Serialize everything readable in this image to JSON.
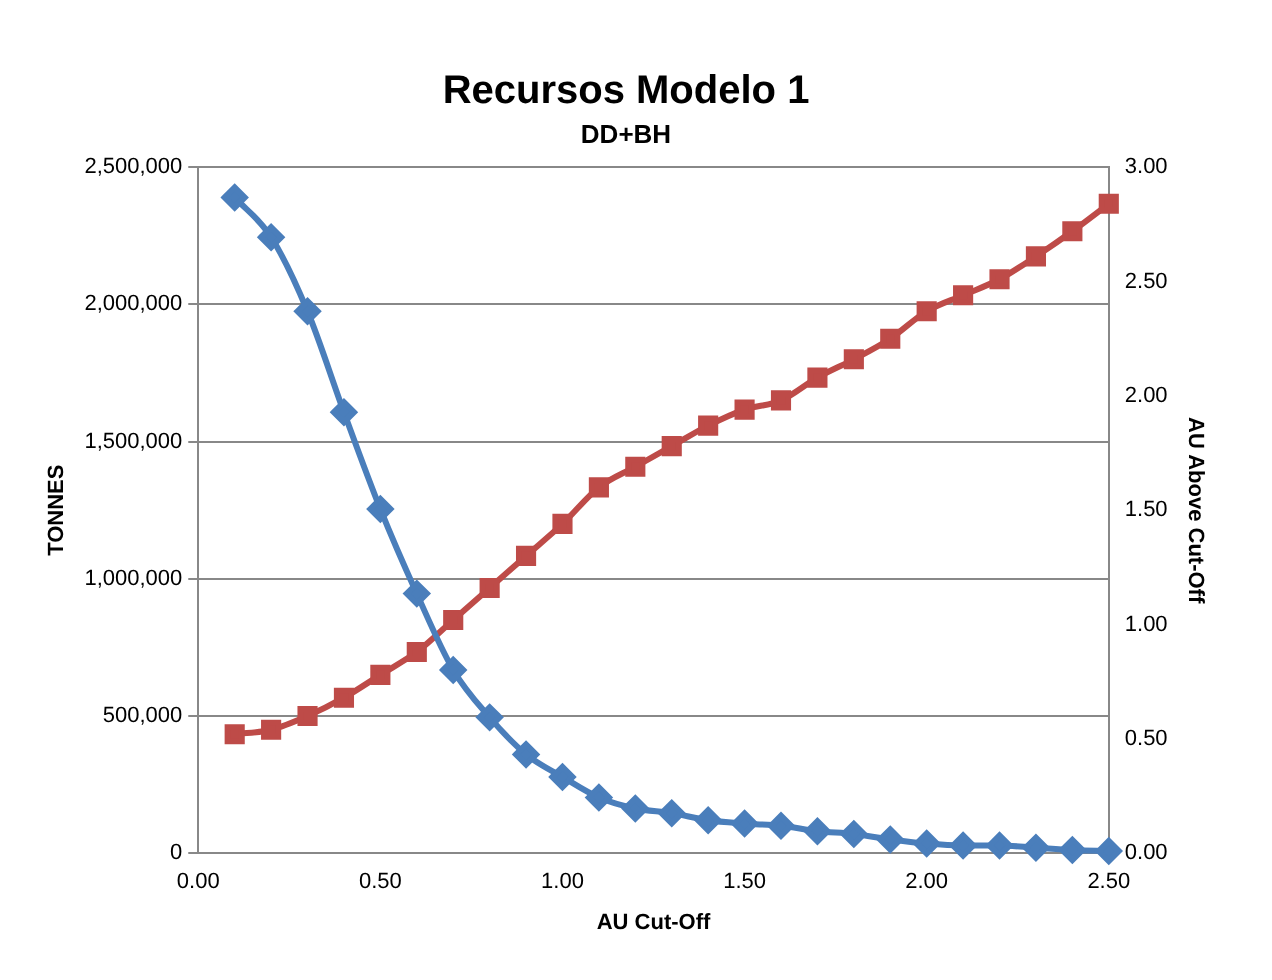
{
  "chart_data": {
    "type": "line",
    "title": "Recursos Modelo 1",
    "subtitle": "DD+BH",
    "xlabel": "AU Cut-Off",
    "ylabel": "TONNES",
    "y2label": "AU Above Cut-Off",
    "x": [
      0.1,
      0.2,
      0.3,
      0.4,
      0.5,
      0.6,
      0.7,
      0.8,
      0.9,
      1.0,
      1.1,
      1.2,
      1.3,
      1.4,
      1.5,
      1.6,
      1.7,
      1.8,
      1.9,
      2.0,
      2.1,
      2.2,
      2.3,
      2.4,
      2.5
    ],
    "series": [
      {
        "color": "#4a7ebb",
        "marker": "diamond",
        "values": [
          2390000,
          2245000,
          1975000,
          1607000,
          1254000,
          946000,
          668000,
          495000,
          360000,
          278000,
          203000,
          163000,
          146000,
          120000,
          108000,
          100000,
          80000,
          70000,
          50000,
          35000,
          28000,
          28000,
          20000,
          12000,
          8000
        ]
      },
      {
        "color": "#be4b48",
        "marker": "square",
        "axis": "y2",
        "values": [
          0.52,
          0.54,
          0.6,
          0.68,
          0.78,
          0.88,
          1.02,
          1.16,
          1.3,
          1.44,
          1.6,
          1.69,
          1.78,
          1.87,
          1.94,
          1.98,
          2.08,
          2.16,
          2.25,
          2.37,
          2.44,
          2.51,
          2.61,
          2.72,
          2.84
        ]
      }
    ],
    "xlim": [
      0,
      2.5
    ],
    "xticks": [
      {
        "value": 0,
        "label": "0.00"
      },
      {
        "value": 0.5,
        "label": "0.50"
      },
      {
        "value": 1,
        "label": "1.00"
      },
      {
        "value": 1.5,
        "label": "1.50"
      },
      {
        "value": 2,
        "label": "2.00"
      },
      {
        "value": 2.5,
        "label": "2.50"
      }
    ],
    "ylim": [
      0,
      2500000
    ],
    "yticks": [
      {
        "value": 0,
        "label": "0"
      },
      {
        "value": 500000,
        "label": "500,000"
      },
      {
        "value": 1000000,
        "label": "1,000,000"
      },
      {
        "value": 1500000,
        "label": "1,500,000"
      },
      {
        "value": 2000000,
        "label": "2,000,000"
      },
      {
        "value": 2500000,
        "label": "2,500,000"
      }
    ],
    "y2lim": [
      0,
      3
    ],
    "y2ticks": [
      {
        "value": 0,
        "label": "0.00"
      },
      {
        "value": 0.5,
        "label": "0.50"
      },
      {
        "value": 1,
        "label": "1.00"
      },
      {
        "value": 1.5,
        "label": "1.50"
      },
      {
        "value": 2,
        "label": "2.00"
      },
      {
        "value": 2.5,
        "label": "2.50"
      },
      {
        "value": 3,
        "label": "3.00"
      }
    ],
    "grid": "y",
    "legend": false,
    "line_style": "solid"
  }
}
